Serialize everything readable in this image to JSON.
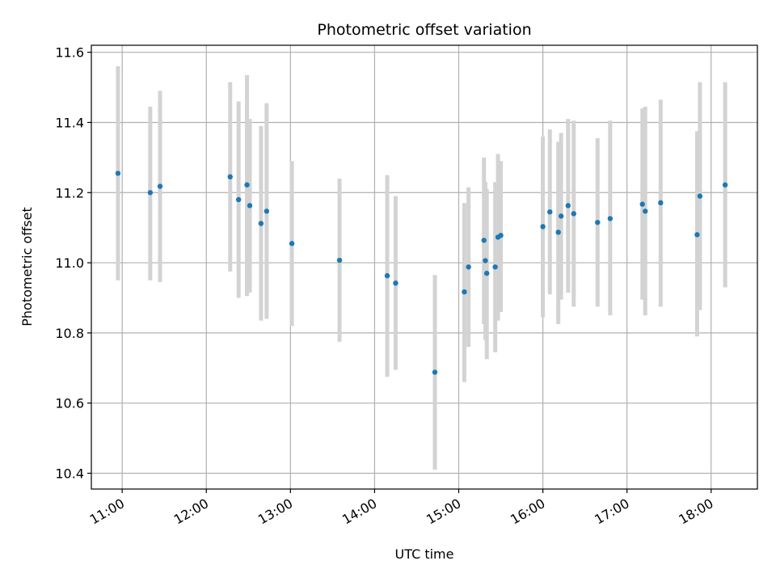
{
  "chart_data": {
    "type": "scatter",
    "title": "Photometric offset variation",
    "xlabel": "UTC time",
    "ylabel": "Photometric offset",
    "xlim": [
      "10:38",
      "18:33"
    ],
    "ylim": [
      10.355,
      11.62
    ],
    "x_ticks": [
      "11:00",
      "12:00",
      "13:00",
      "14:00",
      "15:00",
      "16:00",
      "17:00",
      "18:00"
    ],
    "y_ticks": [
      10.4,
      10.6,
      10.8,
      11.0,
      11.2,
      11.4,
      11.6
    ],
    "grid": true,
    "legend": "none",
    "colors": {
      "point": "#1f77b4",
      "errorbar": "#d3d3d3",
      "grid": "#b0b0b0"
    },
    "points": [
      {
        "x": "10:57",
        "y": 11.255,
        "ylow": 10.95,
        "yhigh": 11.56
      },
      {
        "x": "11:20",
        "y": 11.2,
        "ylow": 10.95,
        "yhigh": 11.445
      },
      {
        "x": "11:27",
        "y": 11.218,
        "ylow": 10.945,
        "yhigh": 11.49
      },
      {
        "x": "12:17",
        "y": 11.245,
        "ylow": 10.975,
        "yhigh": 11.515
      },
      {
        "x": "12:23",
        "y": 11.18,
        "ylow": 10.9,
        "yhigh": 11.46
      },
      {
        "x": "12:29",
        "y": 11.222,
        "ylow": 10.905,
        "yhigh": 11.535
      },
      {
        "x": "12:31",
        "y": 11.163,
        "ylow": 10.915,
        "yhigh": 11.41
      },
      {
        "x": "12:39",
        "y": 11.112,
        "ylow": 10.835,
        "yhigh": 11.39
      },
      {
        "x": "12:43",
        "y": 11.147,
        "ylow": 10.84,
        "yhigh": 11.455
      },
      {
        "x": "13:01",
        "y": 11.055,
        "ylow": 10.82,
        "yhigh": 11.29
      },
      {
        "x": "13:35",
        "y": 11.007,
        "ylow": 10.775,
        "yhigh": 11.24
      },
      {
        "x": "14:09",
        "y": 10.963,
        "ylow": 10.675,
        "yhigh": 11.25
      },
      {
        "x": "14:15",
        "y": 10.942,
        "ylow": 10.695,
        "yhigh": 11.19
      },
      {
        "x": "14:43",
        "y": 10.688,
        "ylow": 10.41,
        "yhigh": 10.965
      },
      {
        "x": "15:04",
        "y": 10.917,
        "ylow": 10.66,
        "yhigh": 11.17
      },
      {
        "x": "15:07",
        "y": 10.988,
        "ylow": 10.76,
        "yhigh": 11.215
      },
      {
        "x": "15:18",
        "y": 11.064,
        "ylow": 10.825,
        "yhigh": 11.3
      },
      {
        "x": "15:19",
        "y": 11.006,
        "ylow": 10.78,
        "yhigh": 11.23
      },
      {
        "x": "15:20",
        "y": 10.97,
        "ylow": 10.725,
        "yhigh": 11.21
      },
      {
        "x": "15:26",
        "y": 10.988,
        "ylow": 10.745,
        "yhigh": 11.23
      },
      {
        "x": "15:28",
        "y": 11.073,
        "ylow": 10.835,
        "yhigh": 11.31
      },
      {
        "x": "15:30",
        "y": 11.078,
        "ylow": 10.86,
        "yhigh": 11.29
      },
      {
        "x": "16:00",
        "y": 11.103,
        "ylow": 10.845,
        "yhigh": 11.36
      },
      {
        "x": "16:05",
        "y": 11.145,
        "ylow": 10.91,
        "yhigh": 11.38
      },
      {
        "x": "16:11",
        "y": 11.087,
        "ylow": 10.825,
        "yhigh": 11.345
      },
      {
        "x": "16:13",
        "y": 11.133,
        "ylow": 10.895,
        "yhigh": 11.37
      },
      {
        "x": "16:18",
        "y": 11.163,
        "ylow": 10.915,
        "yhigh": 11.41
      },
      {
        "x": "16:22",
        "y": 11.14,
        "ylow": 10.875,
        "yhigh": 11.405
      },
      {
        "x": "16:39",
        "y": 11.115,
        "ylow": 10.875,
        "yhigh": 11.355
      },
      {
        "x": "16:48",
        "y": 11.126,
        "ylow": 10.85,
        "yhigh": 11.405
      },
      {
        "x": "17:11",
        "y": 11.167,
        "ylow": 10.895,
        "yhigh": 11.44
      },
      {
        "x": "17:13",
        "y": 11.147,
        "ylow": 10.85,
        "yhigh": 11.445
      },
      {
        "x": "17:24",
        "y": 11.171,
        "ylow": 10.875,
        "yhigh": 11.465
      },
      {
        "x": "17:50",
        "y": 11.08,
        "ylow": 10.79,
        "yhigh": 11.375
      },
      {
        "x": "17:52",
        "y": 11.19,
        "ylow": 10.865,
        "yhigh": 11.515
      },
      {
        "x": "18:10",
        "y": 11.222,
        "ylow": 10.93,
        "yhigh": 11.515
      }
    ]
  }
}
